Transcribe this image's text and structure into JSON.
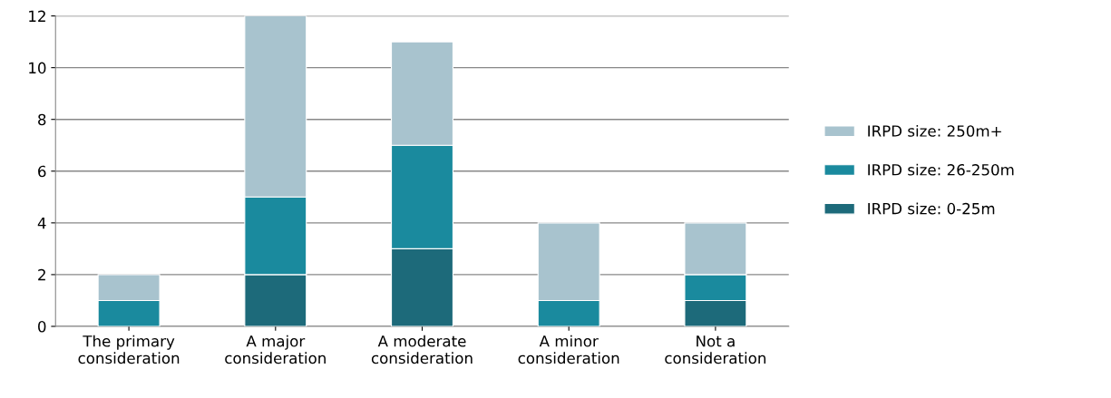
{
  "chart_data": {
    "type": "bar",
    "stacked": true,
    "categories": [
      "The primary\nconsideration",
      "A major\nconsideration",
      "A moderate\nconsideration",
      "A minor\nconsideration",
      "Not a\nconsideration"
    ],
    "series": [
      {
        "name": "IRPD size: 0-25m",
        "color": "#1d6a7a",
        "values": [
          0,
          2,
          3,
          0,
          1
        ]
      },
      {
        "name": "IRPD size: 26-250m",
        "color": "#1a8a9e",
        "values": [
          1,
          3,
          4,
          1,
          1
        ]
      },
      {
        "name": "IRPD size: 250m+",
        "color": "#a8c3ce",
        "values": [
          1,
          7,
          4,
          3,
          2
        ]
      }
    ],
    "ylim": [
      0,
      12
    ],
    "yticks": [
      0,
      2,
      4,
      6,
      8,
      10,
      12
    ],
    "grid": "y",
    "legend": "right"
  }
}
